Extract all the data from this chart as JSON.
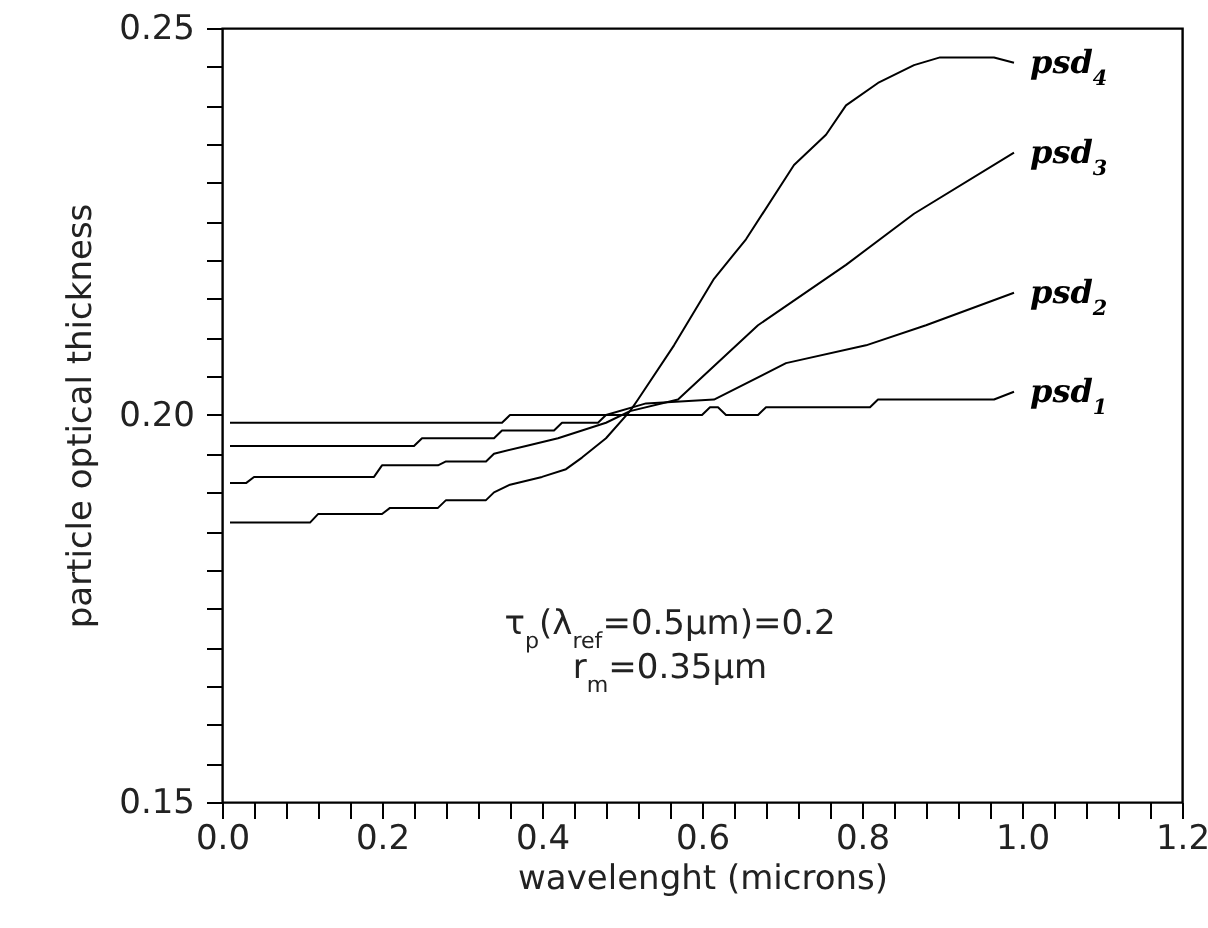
{
  "chart_data": {
    "type": "line",
    "xlabel": "wavelenght (microns)",
    "ylabel": "particle optical thickness",
    "xlim": [
      0,
      1.2
    ],
    "ylim": [
      0.15,
      0.25
    ],
    "xticks": [
      {
        "value": 0,
        "label": "0.0"
      },
      {
        "value": 0.04,
        "label": null
      },
      {
        "value": 0.08,
        "label": null
      },
      {
        "value": 0.12,
        "label": null
      },
      {
        "value": 0.16,
        "label": null
      },
      {
        "value": 0.2,
        "label": "0.2"
      },
      {
        "value": 0.24,
        "label": null
      },
      {
        "value": 0.28,
        "label": null
      },
      {
        "value": 0.32,
        "label": null
      },
      {
        "value": 0.36,
        "label": null
      },
      {
        "value": 0.4,
        "label": "0.4"
      },
      {
        "value": 0.44,
        "label": null
      },
      {
        "value": 0.48,
        "label": null
      },
      {
        "value": 0.52,
        "label": null
      },
      {
        "value": 0.56,
        "label": null
      },
      {
        "value": 0.6,
        "label": "0.6"
      },
      {
        "value": 0.64,
        "label": null
      },
      {
        "value": 0.68,
        "label": null
      },
      {
        "value": 0.72,
        "label": null
      },
      {
        "value": 0.76,
        "label": null
      },
      {
        "value": 0.8,
        "label": "0.8"
      },
      {
        "value": 0.84,
        "label": null
      },
      {
        "value": 0.88,
        "label": null
      },
      {
        "value": 0.92,
        "label": null
      },
      {
        "value": 0.96,
        "label": null
      },
      {
        "value": 1,
        "label": "1.0"
      },
      {
        "value": 1.04,
        "label": null
      },
      {
        "value": 1.08,
        "label": null
      },
      {
        "value": 1.12,
        "label": null
      },
      {
        "value": 1.16,
        "label": null
      },
      {
        "value": 1.2,
        "label": "1.2"
      }
    ],
    "yticks": [
      0.15,
      {
        "value": 0.155,
        "label": null
      },
      {
        "value": 0.16,
        "label": null
      },
      {
        "value": 0.165,
        "label": null
      },
      {
        "value": 0.17,
        "label": null
      },
      {
        "value": 0.175,
        "label": null
      },
      {
        "value": 0.18,
        "label": null
      },
      {
        "value": 0.185,
        "label": null
      },
      {
        "value": 0.19,
        "label": null
      },
      {
        "value": 0.195,
        "label": null
      },
      {
        "value": 0.2,
        "label": "0.20"
      },
      {
        "value": 0.205,
        "label": null
      },
      {
        "value": 0.21,
        "label": null
      },
      {
        "value": 0.215,
        "label": null
      },
      {
        "value": 0.22,
        "label": null
      },
      {
        "value": 0.225,
        "label": null
      },
      {
        "value": 0.23,
        "label": null
      },
      {
        "value": 0.235,
        "label": null
      },
      {
        "value": 0.24,
        "label": null
      },
      {
        "value": 0.245,
        "label": null
      },
      0.25
    ],
    "annotations": [
      "τ$_{p}$(λ$_{ref}$=0.5μm)=0.2",
      "r$_{m}$=0.35μm"
    ],
    "series": [
      {
        "name": "psd$_{1}$",
        "color": "#000000",
        "x": [
          0.01,
          0.35,
          0.36,
          0.6,
          0.61,
          0.62,
          0.63,
          0.67,
          0.68,
          0.81,
          0.82,
          0.965,
          0.99
        ],
        "values": [
          0.199,
          0.199,
          0.2,
          0.2,
          0.201,
          0.201,
          0.2,
          0.2,
          0.201,
          0.201,
          0.202,
          0.202,
          0.203
        ]
      },
      {
        "name": "psd$_{2}$",
        "color": "#000000",
        "x": [
          0.01,
          0.24,
          0.25,
          0.34,
          0.35,
          0.415,
          0.425,
          0.47,
          0.48,
          0.53,
          0.615,
          0.705,
          0.805,
          0.88,
          0.99
        ],
        "values": [
          0.196,
          0.196,
          0.197,
          0.197,
          0.198,
          0.198,
          0.199,
          0.199,
          0.2,
          0.2015,
          0.202,
          0.2067,
          0.209,
          0.2116,
          0.2158
        ]
      },
      {
        "name": "psd$_{3}$",
        "color": "#000000",
        "x": [
          0.01,
          0.03,
          0.04,
          0.19,
          0.2,
          0.27,
          0.28,
          0.33,
          0.34,
          0.38,
          0.42,
          0.45,
          0.48,
          0.51,
          0.57,
          0.67,
          0.78,
          0.865,
          0.99
        ],
        "values": [
          0.1912,
          0.1912,
          0.192,
          0.192,
          0.1935,
          0.1935,
          0.194,
          0.194,
          0.195,
          0.196,
          0.197,
          0.198,
          0.199,
          0.2005,
          0.202,
          0.2116,
          0.2194,
          0.226,
          0.2339
        ]
      },
      {
        "name": "psd$_{4}$",
        "color": "#000000",
        "x": [
          0.01,
          0.11,
          0.12,
          0.2,
          0.21,
          0.27,
          0.28,
          0.33,
          0.34,
          0.36,
          0.4,
          0.43,
          0.45,
          0.48,
          0.51,
          0.52,
          0.565,
          0.615,
          0.655,
          0.715,
          0.755,
          0.78,
          0.82,
          0.865,
          0.8975,
          0.965,
          0.99
        ],
        "values": [
          0.1861,
          0.1861,
          0.1872,
          0.1872,
          0.188,
          0.188,
          0.189,
          0.189,
          0.19,
          0.191,
          0.192,
          0.193,
          0.1945,
          0.197,
          0.2005,
          0.202,
          0.209,
          0.2176,
          0.2227,
          0.2323,
          0.2362,
          0.24,
          0.2429,
          0.2452,
          0.2462,
          0.2462,
          0.2455
        ]
      }
    ]
  }
}
